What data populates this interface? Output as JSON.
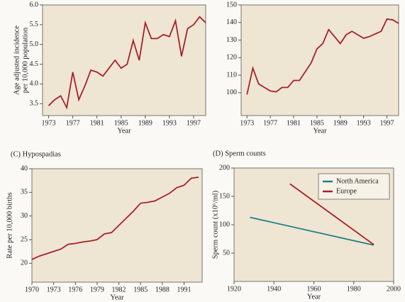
{
  "chart_data": [
    {
      "type": "line",
      "ylabel": [
        "Age adjusted incidence",
        "per 10,000 population"
      ],
      "xlabel": "Year",
      "x": [
        1973,
        1974,
        1975,
        1976,
        1977,
        1978,
        1979,
        1980,
        1981,
        1982,
        1983,
        1984,
        1985,
        1986,
        1987,
        1988,
        1989,
        1990,
        1991,
        1992,
        1993,
        1994,
        1995,
        1996,
        1997,
        1998,
        1999
      ],
      "values": [
        3.45,
        3.6,
        3.7,
        3.4,
        4.3,
        3.6,
        3.95,
        4.35,
        4.3,
        4.2,
        4.4,
        4.6,
        4.4,
        4.5,
        5.1,
        4.6,
        5.55,
        5.15,
        5.15,
        5.25,
        5.2,
        5.6,
        4.7,
        5.4,
        5.5,
        5.7,
        5.55
      ],
      "color": "#a3232a",
      "xlim": [
        1972,
        1999
      ],
      "ylim": [
        3.2,
        6.0
      ],
      "xticks": [
        1973,
        1977,
        1981,
        1985,
        1989,
        1993,
        1997
      ],
      "yticks": [
        3.5,
        {
          "value": 4.0,
          "label": "4.0"
        },
        4.5,
        {
          "value": 5.0,
          "label": "5.0"
        },
        5.5,
        {
          "value": 6.0,
          "label": "6.0"
        }
      ]
    },
    {
      "type": "line",
      "xlabel": "Year",
      "x": [
        1973,
        1974,
        1975,
        1976,
        1977,
        1978,
        1979,
        1980,
        1981,
        1982,
        1983,
        1984,
        1985,
        1986,
        1987,
        1988,
        1989,
        1990,
        1991,
        1992,
        1993,
        1994,
        1995,
        1996,
        1997,
        1998,
        1999
      ],
      "values": [
        99,
        114,
        105,
        103,
        101,
        100.5,
        103,
        103,
        107,
        107,
        112,
        117,
        125,
        128,
        136,
        132,
        128,
        133,
        135,
        133,
        131,
        132,
        133.5,
        135,
        142,
        141.5,
        139.5
      ],
      "color": "#a3232a",
      "xlim": [
        1972,
        1999
      ],
      "ylim": [
        87,
        150
      ],
      "xticks": [
        1973,
        1977,
        1981,
        1985,
        1989,
        1993,
        1997
      ],
      "yticks": [
        100,
        110,
        120,
        130,
        140,
        150
      ]
    },
    {
      "type": "line",
      "title": "(C) Hypospadias",
      "ylabel": [
        "Rate per 10,000 births"
      ],
      "xlabel": "Year",
      "x": [
        1970,
        1971,
        1972,
        1973,
        1974,
        1975,
        1976,
        1977,
        1978,
        1979,
        1980,
        1981,
        1982,
        1983,
        1984,
        1985,
        1986,
        1987,
        1988,
        1989,
        1990,
        1991,
        1992,
        1993
      ],
      "values": [
        20.8,
        21.5,
        22,
        22.5,
        23,
        24,
        24.2,
        24.5,
        24.7,
        25,
        26.2,
        26.5,
        28,
        29.5,
        31,
        32.7,
        32.9,
        33.2,
        34,
        34.8,
        36,
        36.5,
        38,
        38.2
      ],
      "color": "#a3232a",
      "xlim": [
        1970,
        1993.5
      ],
      "ylim": [
        16,
        40
      ],
      "xticks": [
        1970,
        1973,
        1976,
        1979,
        1982,
        1985,
        1988,
        1991
      ],
      "yticks": [
        20,
        25,
        30,
        35,
        40
      ]
    },
    {
      "type": "line",
      "title": "(D) Sperm counts",
      "ylabel": [
        "Sperm count (x10⁶/ml)"
      ],
      "xlabel": "Year",
      "series": [
        {
          "name": "North America",
          "color": "#1f7f8a",
          "x": [
            1928,
            1990
          ],
          "values": [
            113,
            64
          ]
        },
        {
          "name": "Europe",
          "color": "#a3232a",
          "x": [
            1948,
            1990
          ],
          "values": [
            172,
            65
          ]
        }
      ],
      "xlim": [
        1920,
        2000
      ],
      "ylim": [
        0,
        200
      ],
      "xticks": [
        1920,
        1940,
        1960,
        1980,
        2000
      ],
      "yticks": [
        50,
        100,
        150,
        200
      ],
      "legend": "upper-right"
    }
  ]
}
